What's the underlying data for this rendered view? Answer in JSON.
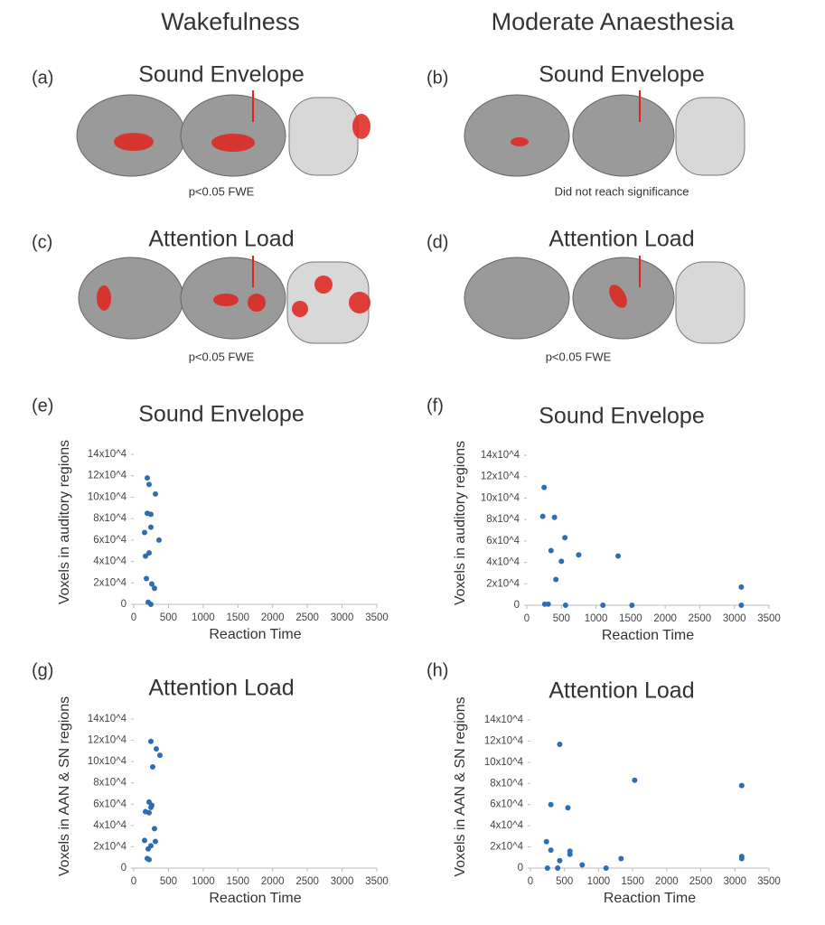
{
  "columns": [
    "Wakefulness",
    "Moderate Anaesthesia"
  ],
  "brain_panels": [
    {
      "label": "(a)",
      "title": "Sound Envelope",
      "note": "p<0.05 FWE"
    },
    {
      "label": "(b)",
      "title": "Sound Envelope",
      "note": "Did not reach significance"
    },
    {
      "label": "(c)",
      "title": "Attention Load",
      "note": "p<0.05 FWE"
    },
    {
      "label": "(d)",
      "title": "Attention Load",
      "note": "p<0.05 FWE"
    }
  ],
  "panel_labels": [
    "(e)",
    "(f)",
    "(g)",
    "(h)"
  ],
  "chart_data": [
    {
      "type": "scatter",
      "title": "Sound Envelope",
      "xlabel": "Reaction Time",
      "ylabel": "Voxels in auditory regions",
      "color": "#2e6db4",
      "x": [
        195,
        221,
        312,
        195,
        247,
        247,
        156,
        364,
        221,
        169,
        182,
        260,
        299,
        208,
        247
      ],
      "y": [
        118000,
        112000,
        103000,
        85000,
        84000,
        72000,
        67000,
        60000,
        48000,
        45000,
        24000,
        19000,
        15000,
        2000,
        0
      ],
      "xlim": [
        0,
        3500
      ],
      "xticks": [
        0,
        500,
        1000,
        1500,
        2000,
        2500,
        3000,
        3500
      ],
      "ylim": [
        0,
        140000
      ],
      "yticks": [
        0,
        {
          "value": 20000,
          "label": "2x10^4"
        },
        {
          "value": 40000,
          "label": "4x10^4"
        },
        {
          "value": 60000,
          "label": "6x10^4"
        },
        {
          "value": 80000,
          "label": "8x10^4"
        },
        {
          "value": 100000,
          "label": "10x10^4"
        },
        {
          "value": 120000,
          "label": "12x10^4"
        },
        {
          "value": 140000,
          "label": "14x10^4"
        }
      ]
    },
    {
      "type": "scatter",
      "title": "Sound Envelope",
      "xlabel": "Reaction Time",
      "ylabel": "Voxels in auditory regions",
      "color": "#2e6db4",
      "x": [
        250,
        230,
        400,
        550,
        350,
        750,
        1320,
        500,
        420,
        260,
        310,
        560,
        1100,
        1520,
        3100,
        3100
      ],
      "y": [
        110000,
        83000,
        82000,
        63000,
        51000,
        47000,
        46000,
        41000,
        24000,
        1000,
        1000,
        0,
        0,
        0,
        17000,
        0
      ],
      "xlim": [
        0,
        3500
      ],
      "xticks": [
        0,
        500,
        1000,
        1500,
        2000,
        2500,
        3000,
        3500
      ],
      "ylim": [
        0,
        140000
      ],
      "yticks": [
        0,
        {
          "value": 20000,
          "label": "2x10^4"
        },
        {
          "value": 40000,
          "label": "4x10^4"
        },
        {
          "value": 60000,
          "label": "6x10^4"
        },
        {
          "value": 80000,
          "label": "8x10^4"
        },
        {
          "value": 100000,
          "label": "10x10^4"
        },
        {
          "value": 120000,
          "label": "12x10^4"
        },
        {
          "value": 140000,
          "label": "14x10^4"
        }
      ]
    },
    {
      "type": "scatter",
      "title": "Attention Load",
      "xlabel": "Reaction Time",
      "ylabel": "Voxels in AAN & SN regions",
      "color": "#2e6db4",
      "x": [
        247,
        325,
        377,
        273,
        221,
        260,
        247,
        169,
        221,
        299,
        156,
        312,
        247,
        208,
        195,
        221
      ],
      "y": [
        119000,
        112000,
        106000,
        95000,
        62000,
        59000,
        57000,
        53000,
        52000,
        37000,
        26000,
        25000,
        21000,
        18000,
        9000,
        8000
      ],
      "xlim": [
        0,
        3500
      ],
      "xticks": [
        0,
        500,
        1000,
        1500,
        2000,
        2500,
        3000,
        3500
      ],
      "ylim": [
        0,
        140000
      ],
      "yticks": [
        0,
        {
          "value": 20000,
          "label": "2x10^4"
        },
        {
          "value": 40000,
          "label": "4x10^4"
        },
        {
          "value": 60000,
          "label": "6x10^4"
        },
        {
          "value": 80000,
          "label": "8x10^4"
        },
        {
          "value": 100000,
          "label": "10x10^4"
        },
        {
          "value": 120000,
          "label": "12x10^4"
        },
        {
          "value": 140000,
          "label": "14x10^4"
        }
      ]
    },
    {
      "type": "scatter",
      "title": "Attention Load",
      "xlabel": "Reaction Time",
      "ylabel": "Voxels in AAN & SN regions",
      "color": "#2e6db4",
      "x": [
        235,
        300,
        430,
        300,
        550,
        1530,
        3100,
        3100,
        3100,
        580,
        580,
        1330,
        430,
        760,
        250,
        400,
        1110
      ],
      "y": [
        25000,
        60000,
        117000,
        17000,
        57000,
        83000,
        78000,
        11000,
        9000,
        16000,
        13000,
        9000,
        7000,
        3000,
        0,
        0,
        0
      ],
      "xlim": [
        0,
        3500
      ],
      "xticks": [
        0,
        500,
        1000,
        1500,
        2000,
        2500,
        3000,
        3500
      ],
      "ylim": [
        0,
        140000
      ],
      "yticks": [
        0,
        {
          "value": 20000,
          "label": "2x10^4"
        },
        {
          "value": 40000,
          "label": "4x10^4"
        },
        {
          "value": 60000,
          "label": "6x10^4"
        },
        {
          "value": 80000,
          "label": "8x10^4"
        },
        {
          "value": 100000,
          "label": "10x10^4"
        },
        {
          "value": 120000,
          "label": "12x10^4"
        },
        {
          "value": 140000,
          "label": "14x10^4"
        }
      ]
    }
  ]
}
